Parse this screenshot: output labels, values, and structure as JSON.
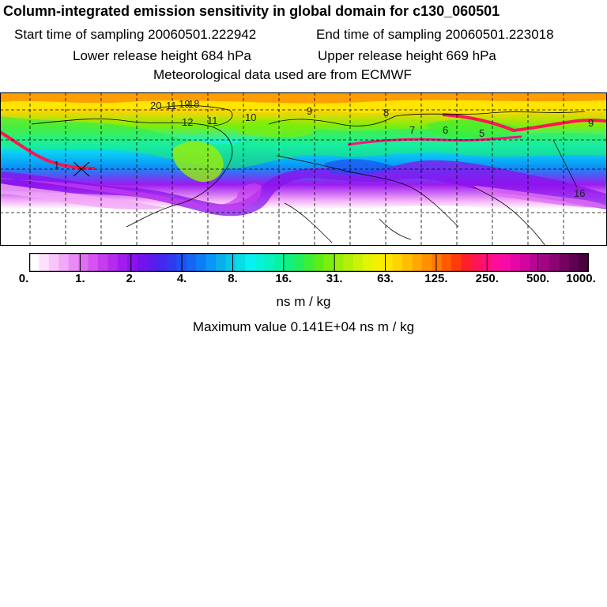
{
  "header": {
    "title": "Column-integrated emission sensitivity in global domain for c130_060501",
    "start_time": "Start time of sampling 20060501.222942",
    "end_time": "End time of sampling 20060501.223018",
    "lower_height": "Lower release height  684 hPa",
    "upper_height": "Upper release height  669 hPa",
    "met_data": "Meteorological data used are from ECMWF"
  },
  "map": {
    "contour_labels": [
      "20",
      "11",
      "19",
      "18",
      "12",
      "11",
      "10",
      "9",
      "8",
      "7",
      "6",
      "5",
      "9",
      "1",
      "16"
    ],
    "colors": {
      "land_outline": "#000000",
      "grid": "#000000",
      "plume_max": "#ff1493"
    }
  },
  "colorbar": {
    "tick_labels": [
      "0.",
      "1.",
      "2.",
      "4.",
      "8.",
      "16.",
      "31.",
      "63.",
      "125.",
      "250.",
      "500.",
      "1000."
    ],
    "colors": [
      "#ffffff",
      "#fde0fd",
      "#f8c4fb",
      "#f2a8f8",
      "#e98bf5",
      "#df6ff2",
      "#d554ef",
      "#c63dee",
      "#b42bee",
      "#a11cef",
      "#8a12ee",
      "#7412ee",
      "#5c1bef",
      "#4528ef",
      "#2f39f0",
      "#1f4ff1",
      "#1565f3",
      "#0e7df5",
      "#0a96f7",
      "#08afe9",
      "#08c6e8",
      "#08dde4",
      "#09f0f0",
      "#08f2d9",
      "#08f3be",
      "#09f29f",
      "#10f07e",
      "#22ee5c",
      "#3cee35",
      "#5bed18",
      "#7aee0c",
      "#98ef09",
      "#b3f007",
      "#ccf205",
      "#e3f404",
      "#f4f000",
      "#ffe600",
      "#ffd400",
      "#ffbf00",
      "#ffa800",
      "#ff9000",
      "#ff7800",
      "#ff5a00",
      "#ff3a0c",
      "#ff1f2c",
      "#ff1455",
      "#ff0f7a",
      "#ff0d99",
      "#f80aa8",
      "#e608a6",
      "#d0069f",
      "#ba0594",
      "#a30485",
      "#8c0374",
      "#740262",
      "#5d0150",
      "#48013f"
    ],
    "unit": "ns m / kg"
  },
  "footer": {
    "max_value": "Maximum value  0.141E+04 ns m / kg"
  }
}
